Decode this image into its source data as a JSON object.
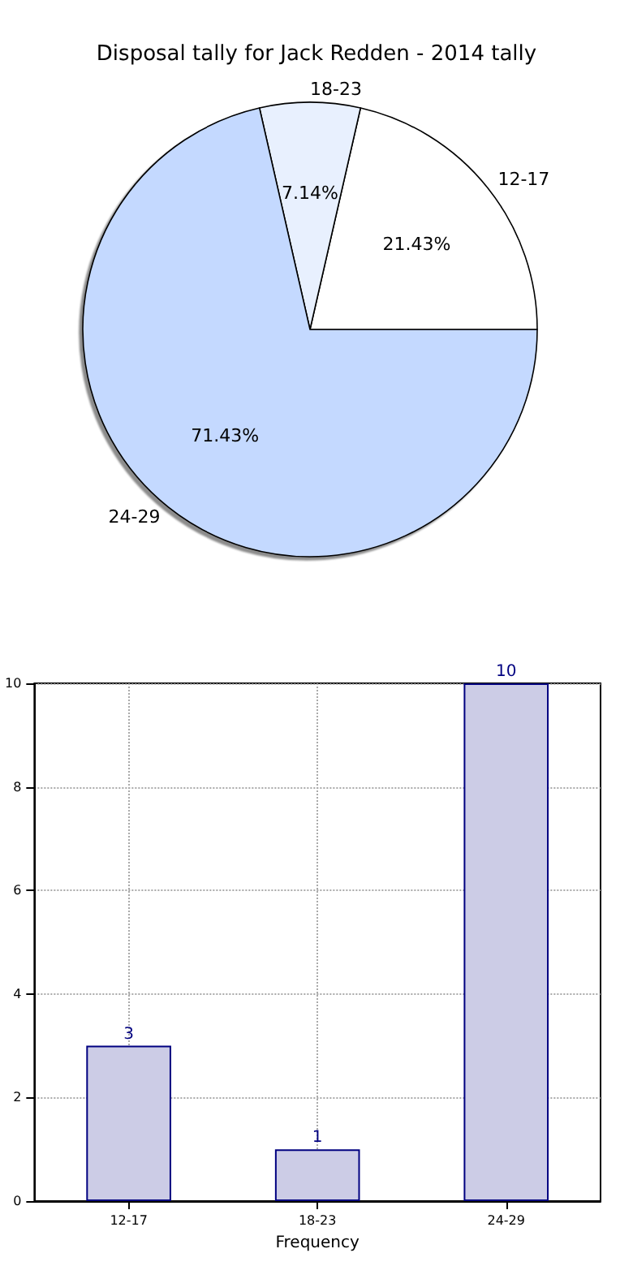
{
  "chart_data": [
    {
      "type": "pie",
      "title": "Disposal tally for Jack Redden - 2014 tally",
      "categories": [
        "12-17",
        "18-23",
        "24-29"
      ],
      "values": [
        21.43,
        7.14,
        71.43
      ],
      "colors": [
        "#ffffff",
        "#e8f0fe",
        "#c4d9ff"
      ],
      "value_labels": [
        "21.43%",
        "7.14%",
        "71.43%"
      ]
    },
    {
      "type": "bar",
      "categories": [
        "12-17",
        "18-23",
        "24-29"
      ],
      "values": [
        3,
        1,
        10
      ],
      "color": "#cccce6",
      "xlabel": "Frequency",
      "ylim": [
        0,
        10
      ],
      "yticks": [
        0,
        2,
        4,
        6,
        8,
        10
      ],
      "grid": true,
      "data_labels": true
    }
  ]
}
